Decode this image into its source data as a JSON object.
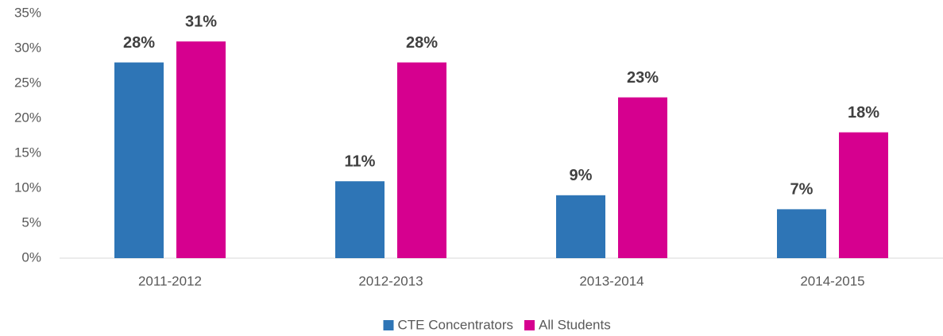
{
  "chart_data": {
    "type": "bar",
    "categories": [
      "2011-2012",
      "2012-2013",
      "2013-2014",
      "2014-2015"
    ],
    "series": [
      {
        "name": "CTE Concentrators",
        "color": "#2e75b6",
        "values": [
          28,
          11,
          9,
          7
        ],
        "value_labels": [
          "28%",
          "11%",
          "9%",
          "7%"
        ]
      },
      {
        "name": "All Students",
        "color": "#d6008f",
        "values": [
          31,
          28,
          23,
          18
        ],
        "value_labels": [
          "31%",
          "28%",
          "23%",
          "18%"
        ]
      }
    ],
    "ylim": [
      0,
      35
    ],
    "yticks": [
      {
        "value": 0,
        "label": "0%"
      },
      {
        "value": 5,
        "label": "5%"
      },
      {
        "value": 10,
        "label": "10%"
      },
      {
        "value": 15,
        "label": "15%"
      },
      {
        "value": 20,
        "label": "20%"
      },
      {
        "value": 25,
        "label": "25%"
      },
      {
        "value": 30,
        "label": "30%"
      },
      {
        "value": 35,
        "label": "35%"
      }
    ],
    "grid": false,
    "legend": "bottom"
  }
}
